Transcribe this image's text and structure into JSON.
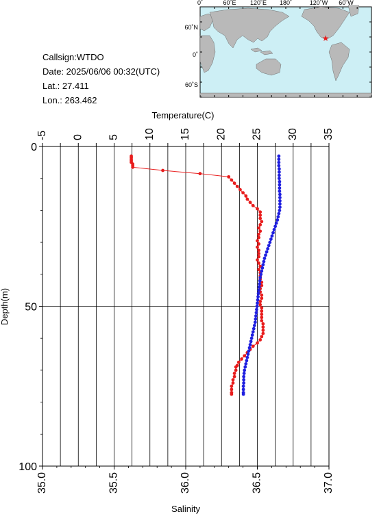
{
  "station": {
    "callsign_line": "Callsign:WTDO",
    "date_line": "Date:  2025/06/06 00:32(UTC)",
    "lat_line": "Lat.:  27.411",
    "lon_line": "Lon.:  263.462"
  },
  "map": {
    "top_labels": [
      "0˚",
      "60˚E",
      "120˚E",
      "180˚",
      "120˚W",
      "60˚W"
    ],
    "lat_labels": [
      "60˚N",
      "0˚",
      "60˚S"
    ],
    "ocean_color": "#cdeff5",
    "land_color": "#b9b9b9",
    "marker": {
      "lat": 27.411,
      "lon": 263.462,
      "symbol": "★",
      "color": "#e81c1c"
    }
  },
  "chart_data": {
    "type": "line",
    "top_axis": {
      "label": "Temperature(C)",
      "range": [
        -5,
        35
      ],
      "ticks": [
        -5,
        0,
        5,
        10,
        15,
        20,
        25,
        30,
        35
      ]
    },
    "bottom_axis": {
      "label": "Salinity",
      "range": [
        35.0,
        37.0
      ],
      "ticks": [
        "35.0",
        "35.5",
        "36.0",
        "36.5",
        "37.0"
      ]
    },
    "y_axis": {
      "label": "Depth(m)",
      "range": [
        0,
        100
      ],
      "inverted": true,
      "ticks": [
        0,
        50,
        100
      ]
    },
    "grid": {
      "vertical": true,
      "horizontal_at": [
        50
      ]
    },
    "series": [
      {
        "color": "#e81c1c",
        "axis": "salinity",
        "points": [
          [
            35.62,
            3.0
          ],
          [
            35.62,
            3.5
          ],
          [
            35.62,
            4.0
          ],
          [
            35.62,
            4.5
          ],
          [
            35.62,
            5.0
          ],
          [
            35.63,
            5.5
          ],
          [
            35.63,
            6.0
          ],
          [
            35.63,
            6.5
          ],
          [
            35.84,
            7.5
          ],
          [
            36.1,
            8.5
          ],
          [
            36.3,
            9.5
          ],
          [
            36.32,
            10.5
          ],
          [
            36.34,
            11.5
          ],
          [
            36.36,
            12.5
          ],
          [
            36.38,
            13.5
          ],
          [
            36.4,
            14.5
          ],
          [
            36.42,
            15.5
          ],
          [
            36.43,
            16.5
          ],
          [
            36.45,
            17.5
          ],
          [
            36.47,
            18.5
          ],
          [
            36.5,
            19.5
          ],
          [
            36.52,
            20.5
          ],
          [
            36.52,
            21.5
          ],
          [
            36.52,
            22.5
          ],
          [
            36.53,
            23.5
          ],
          [
            36.52,
            24.5
          ],
          [
            36.51,
            25.5
          ],
          [
            36.52,
            26.5
          ],
          [
            36.51,
            27.5
          ],
          [
            36.51,
            28.5
          ],
          [
            36.5,
            29.5
          ],
          [
            36.51,
            30.5
          ],
          [
            36.5,
            31.5
          ],
          [
            36.51,
            32.5
          ],
          [
            36.51,
            33.5
          ],
          [
            36.51,
            34.5
          ],
          [
            36.5,
            35.5
          ],
          [
            36.51,
            36.5
          ],
          [
            36.52,
            37.5
          ],
          [
            36.51,
            38.5
          ],
          [
            36.52,
            39.5
          ],
          [
            36.52,
            40.5
          ],
          [
            36.52,
            41.5
          ],
          [
            36.53,
            42.5
          ],
          [
            36.53,
            43.5
          ],
          [
            36.52,
            44.5
          ],
          [
            36.52,
            45.5
          ],
          [
            36.53,
            46.5
          ],
          [
            36.53,
            47.5
          ],
          [
            36.52,
            48.5
          ],
          [
            36.52,
            49.5
          ],
          [
            36.53,
            50.5
          ],
          [
            36.53,
            51.5
          ],
          [
            36.53,
            52.5
          ],
          [
            36.53,
            53.5
          ],
          [
            36.53,
            54.5
          ],
          [
            36.54,
            55.5
          ],
          [
            36.54,
            56.5
          ],
          [
            36.54,
            57.5
          ],
          [
            36.54,
            58.5
          ],
          [
            36.53,
            59.5
          ],
          [
            36.52,
            60.5
          ],
          [
            36.5,
            61.5
          ],
          [
            36.47,
            62.5
          ],
          [
            36.45,
            63.5
          ],
          [
            36.43,
            64.5
          ],
          [
            36.41,
            65.5
          ],
          [
            36.39,
            66.5
          ],
          [
            36.37,
            67.5
          ],
          [
            36.36,
            68.5
          ],
          [
            36.35,
            69.0
          ],
          [
            36.35,
            70.0
          ],
          [
            36.34,
            71.0
          ],
          [
            36.34,
            72.0
          ],
          [
            36.33,
            73.0
          ],
          [
            36.33,
            74.0
          ],
          [
            36.32,
            75.0
          ],
          [
            36.32,
            76.0
          ],
          [
            36.32,
            77.0
          ],
          [
            36.32,
            77.5
          ]
        ]
      },
      {
        "color": "#1f1fe0",
        "axis": "temperature",
        "points": [
          [
            28.0,
            3.0
          ],
          [
            28.0,
            4.0
          ],
          [
            28.0,
            5.0
          ],
          [
            28.0,
            6.0
          ],
          [
            28.05,
            7.0
          ],
          [
            28.05,
            8.0
          ],
          [
            28.05,
            9.0
          ],
          [
            28.05,
            10.0
          ],
          [
            28.1,
            11.0
          ],
          [
            28.1,
            12.0
          ],
          [
            28.1,
            13.0
          ],
          [
            28.1,
            14.0
          ],
          [
            28.15,
            15.0
          ],
          [
            28.15,
            16.0
          ],
          [
            28.15,
            17.0
          ],
          [
            28.15,
            18.0
          ],
          [
            28.15,
            19.0
          ],
          [
            28.1,
            20.0
          ],
          [
            28.0,
            21.0
          ],
          [
            27.9,
            22.0
          ],
          [
            27.8,
            23.0
          ],
          [
            27.65,
            24.0
          ],
          [
            27.5,
            25.0
          ],
          [
            27.35,
            26.0
          ],
          [
            27.2,
            27.0
          ],
          [
            27.05,
            28.0
          ],
          [
            26.9,
            29.0
          ],
          [
            26.75,
            30.0
          ],
          [
            26.6,
            31.0
          ],
          [
            26.45,
            32.0
          ],
          [
            26.3,
            33.0
          ],
          [
            26.15,
            34.0
          ],
          [
            26.0,
            35.0
          ],
          [
            25.9,
            36.0
          ],
          [
            25.8,
            37.0
          ],
          [
            25.7,
            38.0
          ],
          [
            25.6,
            39.0
          ],
          [
            25.5,
            40.0
          ],
          [
            25.4,
            41.0
          ],
          [
            25.35,
            42.0
          ],
          [
            25.3,
            43.0
          ],
          [
            25.25,
            44.0
          ],
          [
            25.2,
            45.0
          ],
          [
            25.15,
            46.0
          ],
          [
            25.1,
            47.0
          ],
          [
            25.05,
            48.0
          ],
          [
            25.0,
            49.0
          ],
          [
            24.95,
            50.0
          ],
          [
            24.9,
            51.0
          ],
          [
            24.85,
            52.0
          ],
          [
            24.8,
            53.0
          ],
          [
            24.75,
            54.0
          ],
          [
            24.7,
            55.0
          ],
          [
            24.6,
            56.0
          ],
          [
            24.5,
            57.0
          ],
          [
            24.4,
            58.0
          ],
          [
            24.3,
            59.0
          ],
          [
            24.2,
            60.0
          ],
          [
            24.1,
            61.0
          ],
          [
            24.0,
            62.0
          ],
          [
            23.9,
            63.0
          ],
          [
            23.8,
            64.0
          ],
          [
            23.7,
            65.0
          ],
          [
            23.6,
            66.0
          ],
          [
            23.5,
            67.0
          ],
          [
            23.4,
            68.0
          ],
          [
            23.3,
            69.0
          ],
          [
            23.2,
            70.0
          ],
          [
            23.15,
            71.0
          ],
          [
            23.1,
            72.0
          ],
          [
            23.1,
            73.0
          ],
          [
            23.1,
            74.0
          ],
          [
            23.05,
            75.0
          ],
          [
            23.05,
            76.0
          ],
          [
            23.05,
            77.0
          ],
          [
            23.05,
            77.5
          ]
        ]
      }
    ]
  }
}
